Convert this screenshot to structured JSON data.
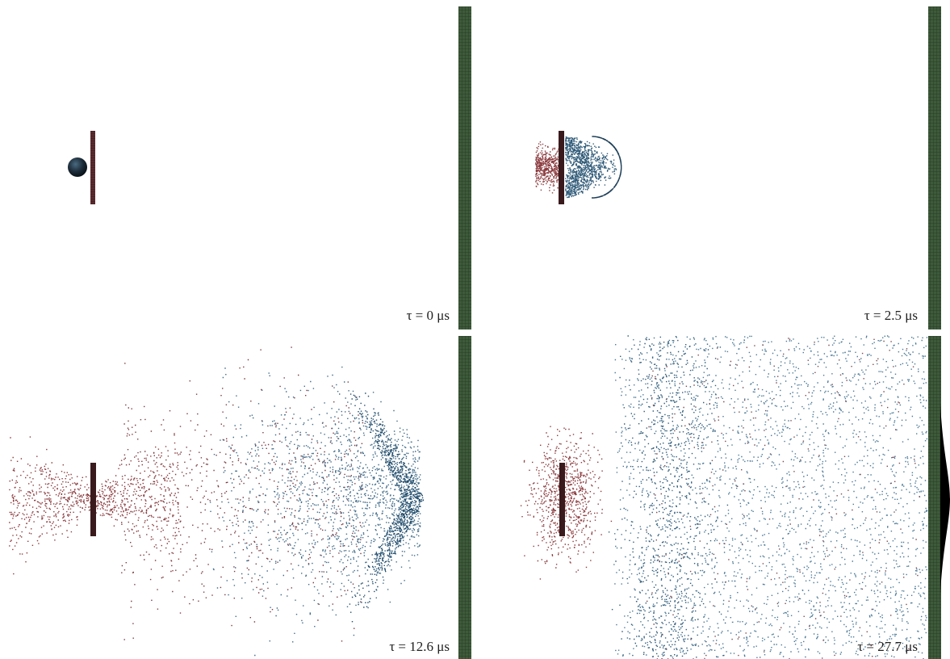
{
  "panels": [
    {
      "label": "τ = 0 μs"
    },
    {
      "label": "τ = 2.5 μs"
    },
    {
      "label": "τ = 12.6 μs"
    },
    {
      "label": "τ = 27.7 μs"
    }
  ]
}
